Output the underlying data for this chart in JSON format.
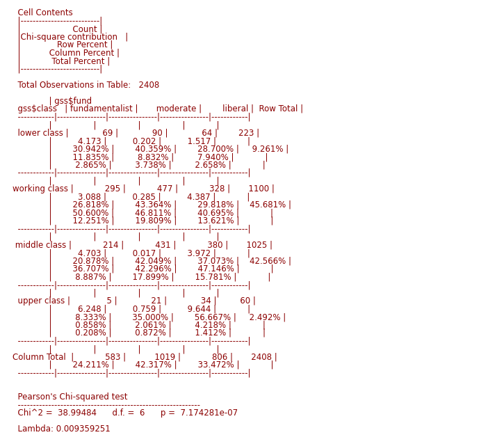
{
  "bg_color": "#ffffff",
  "text_color": "#8B0000",
  "font_family": "Courier New",
  "fs": 8.5,
  "lines": [
    "  Cell Contents",
    "  |--------------------------|",
    "  |                    Count |",
    "  |Chi-square contribution   |",
    "  |              Row Percent |",
    "  |           Column Percent |",
    "  |            Total Percent |",
    "  |--------------------------|",
    "",
    "  Total Observations in Table:   2408",
    "",
    "              | gss$fund",
    "  gss$class   | fundamentalist |       moderate |        liberal |  Row Total |",
    "  ------------|----------------|----------------|----------------|------------|",
    "              |                |                |                |            |",
    "  lower class |             69 |             90 |             64 |        223 |",
    "              |          4.173 |          0.202 |          1.517 |            |",
    "              |        30.942% |        40.359% |        28.700% |     9.261% |",
    "              |        11.835% |         8.832% |         7.940% |            |",
    "              |         2.865% |         3.738% |         2.658% |            |",
    "  ------------|----------------|----------------|----------------|------------|",
    "              |                |                |                |            |",
    "working class |            295 |            477 |            328 |       1100 |",
    "              |          3.088 |          0.285 |          4.387 |            |",
    "              |        26.818% |        43.364% |        29.818% |    45.681% |",
    "              |        50.600% |        46.811% |        40.695% |            |",
    "              |        12.251% |        19.809% |        13.621% |            |",
    "  ------------|----------------|----------------|----------------|------------|",
    "              |                |                |                |            |",
    " middle class |            214 |            431 |            380 |       1025 |",
    "              |          4.703 |          0.017 |          3.972 |            |",
    "              |        20.878% |        42.049% |        37.073% |    42.566% |",
    "              |        36.707% |        42.296% |        47.146% |            |",
    "              |         8.887% |        17.899% |        15.781% |            |",
    "  ------------|----------------|----------------|----------------|------------|",
    "              |                |                |                |            |",
    "  upper class |              5 |             21 |             34 |         60 |",
    "              |          6.248 |          0.759 |          9.644 |            |",
    "              |         8.333% |        35.000% |        56.667% |     2.492% |",
    "              |         0.858% |         2.061% |         4.218% |            |",
    "              |         0.208% |         0.872% |         1.412% |            |",
    "  ------------|----------------|----------------|----------------|------------|",
    "              |                |                |                |            |",
    "Column Total  |            583 |           1019 |            806 |       2408 |",
    "              |        24.211% |        42.317% |        33.472% |            |",
    "  ------------|----------------|----------------|----------------|------------|",
    "",
    "",
    "  Pearson's Chi-squared test",
    "  ------------------------------------------------------------",
    "  Chi^2 =  38.99484      d.f. =  6      p =  7.174281e-07",
    "",
    "  Lambda: 0.009359251"
  ]
}
